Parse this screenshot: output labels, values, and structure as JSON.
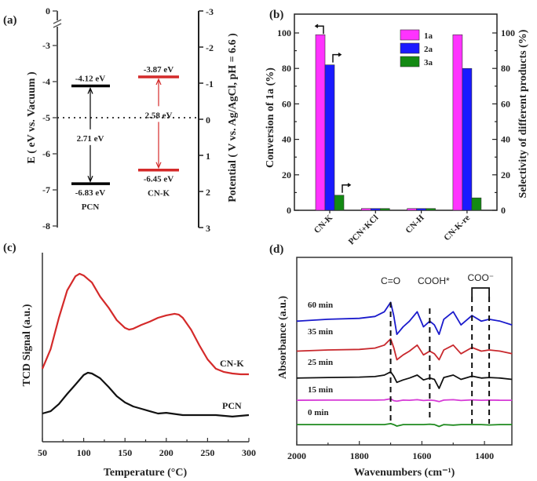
{
  "panel_labels": {
    "a": "(a)",
    "b": "(b)",
    "c": "(c)",
    "d": "(d)"
  },
  "chart_data": [
    {
      "type": "energy-level",
      "panel": "a",
      "ylabel_left": "E ( eV vs. Vacuum )",
      "ylabel_right": "Potential ( V vs. Ag/AgCl, pH = 6.6 )",
      "left_ticks": [
        "0",
        "-3",
        "-4",
        "-5",
        "-6",
        "-7",
        "-8"
      ],
      "right_ticks": [
        "-3",
        "-2",
        "-1",
        "0",
        "1",
        "2",
        "3"
      ],
      "ylim_left": [
        -8,
        0
      ],
      "axis_break": true,
      "reference_line_E": -5,
      "materials": [
        {
          "name": "PCN",
          "cb": -4.12,
          "vb": -6.83,
          "cb_label": "-4.12 eV",
          "vb_label": "-6.83 eV",
          "gap_label": "2.71 eV",
          "color": "#000000"
        },
        {
          "name": "CN-K",
          "cb": -3.87,
          "vb": -6.45,
          "cb_label": "-3.87 eV",
          "vb_label": "-6.45 eV",
          "gap_label": "2.58 eV",
          "color": "#d42a2a"
        }
      ]
    },
    {
      "type": "bar",
      "panel": "b",
      "categories": [
        "CN-K",
        "PCN+KCl",
        "CN-H",
        "CN-K-re"
      ],
      "series": [
        {
          "name": "1a",
          "color": "#ff33ff",
          "values": [
            99,
            1,
            1,
            99
          ]
        },
        {
          "name": "2a",
          "color": "#1a1aff",
          "values": [
            82,
            1,
            1,
            80
          ]
        },
        {
          "name": "3a",
          "color": "#138a13",
          "values": [
            8.5,
            1,
            1,
            7
          ]
        }
      ],
      "ylabel": "Conversion of 1a (%)",
      "ylabel_right": "Selectivity of different products (%)",
      "ylim": [
        0,
        110
      ],
      "yticks": [
        "0",
        "20",
        "40",
        "60",
        "80",
        "100"
      ],
      "legend": "top-center"
    },
    {
      "type": "line",
      "panel": "c",
      "xlabel": "Temperature (°C)",
      "ylabel": "TCD Signal (a.u.)",
      "xlim": [
        50,
        300
      ],
      "xticks": [
        "50",
        "100",
        "150",
        "200",
        "250",
        "300"
      ],
      "series": [
        {
          "name": "CN-K",
          "color": "#d42a2a",
          "x": [
            50,
            60,
            70,
            80,
            90,
            95,
            100,
            110,
            120,
            130,
            140,
            150,
            155,
            160,
            170,
            180,
            190,
            200,
            210,
            215,
            220,
            230,
            240,
            250,
            260,
            270,
            280,
            290,
            300
          ],
          "y": [
            38.3,
            48.6,
            65,
            79.4,
            86.8,
            88.1,
            87.2,
            83.5,
            76.1,
            70.4,
            63.8,
            59.7,
            58.8,
            59.3,
            61.3,
            63,
            65,
            66.3,
            67.1,
            66.7,
            65,
            58.8,
            50.6,
            43.2,
            38.3,
            36.6,
            35.8,
            35.4,
            35.4
          ]
        },
        {
          "name": "PCN",
          "color": "#111111",
          "x": [
            50,
            60,
            70,
            80,
            90,
            100,
            105,
            110,
            120,
            130,
            140,
            150,
            160,
            170,
            180,
            190,
            200,
            220,
            240,
            260,
            280,
            300
          ],
          "y": [
            14.8,
            16,
            19.8,
            25.1,
            30,
            35,
            36.2,
            35.8,
            33.3,
            28.8,
            23.9,
            20.6,
            18.5,
            17.3,
            16,
            14.8,
            15.2,
            14,
            14,
            14,
            13.2,
            14
          ]
        }
      ]
    },
    {
      "type": "line",
      "panel": "d",
      "xlabel": "Wavenumbers (cm⁻¹)",
      "ylabel": "Absorbance (a.u.)",
      "xlim": [
        2000,
        1312
      ],
      "xticks": [
        "2000",
        "1800",
        "1600",
        "1400"
      ],
      "annotations": [
        {
          "label": "C=O",
          "wavenumber": 1700
        },
        {
          "label": "COOH*",
          "wavenumber": 1575
        },
        {
          "label": "COO⁻",
          "wavenumbers": [
            1440,
            1385
          ]
        }
      ],
      "x": [
        2000,
        1900,
        1800,
        1750,
        1720,
        1700,
        1690,
        1680,
        1660,
        1640,
        1615,
        1595,
        1575,
        1560,
        1545,
        1530,
        1500,
        1475,
        1440,
        1410,
        1385,
        1350,
        1312
      ],
      "series": [
        {
          "name": "60 min",
          "color": "#1a1acc",
          "y": [
            65.7,
            66.7,
            67.2,
            68.2,
            70.7,
            75.7,
            68.7,
            58.7,
            62.7,
            65.7,
            70.7,
            62.7,
            65.7,
            63.7,
            58.7,
            66.7,
            70.7,
            63.7,
            68.7,
            65.7,
            66.7,
            65.7,
            63.7
          ]
        },
        {
          "name": "35 min",
          "color": "#c8282d",
          "y": [
            49.8,
            50.4,
            50.7,
            51.4,
            53.0,
            56.3,
            51.7,
            45.2,
            47.8,
            49.8,
            53.0,
            47.8,
            49.8,
            48.4,
            45.2,
            50.4,
            53.0,
            48.4,
            51.7,
            49.8,
            50.4,
            49.8,
            48.4
          ]
        },
        {
          "name": "25 min",
          "color": "#111111",
          "y": [
            35.5,
            35.8,
            36.0,
            36.3,
            37.1,
            38.8,
            36.5,
            33.2,
            34.5,
            35.5,
            37.1,
            34.5,
            35.5,
            34.8,
            30.0,
            35.8,
            37.1,
            34.8,
            36.5,
            35.5,
            35.8,
            35.5,
            34.8
          ]
        },
        {
          "name": "15 min",
          "color": "#d63ad6",
          "y": [
            23.7,
            23.8,
            23.8,
            23.8,
            23.9,
            24.5,
            23.5,
            23.2,
            23.8,
            23.7,
            24.0,
            23.6,
            23.8,
            23.6,
            23.0,
            23.8,
            24.0,
            23.6,
            23.9,
            23.7,
            23.8,
            23.7,
            23.7
          ]
        },
        {
          "name": "0 min",
          "color": "#1f8a1f",
          "y": [
            10.8,
            10.8,
            10.8,
            10.8,
            10.8,
            11.3,
            10.8,
            10.0,
            10.8,
            10.8,
            10.8,
            10.8,
            11.0,
            10.8,
            9.8,
            10.8,
            10.5,
            10.8,
            10.8,
            10.8,
            10.6,
            10.8,
            10.8
          ]
        }
      ]
    }
  ]
}
